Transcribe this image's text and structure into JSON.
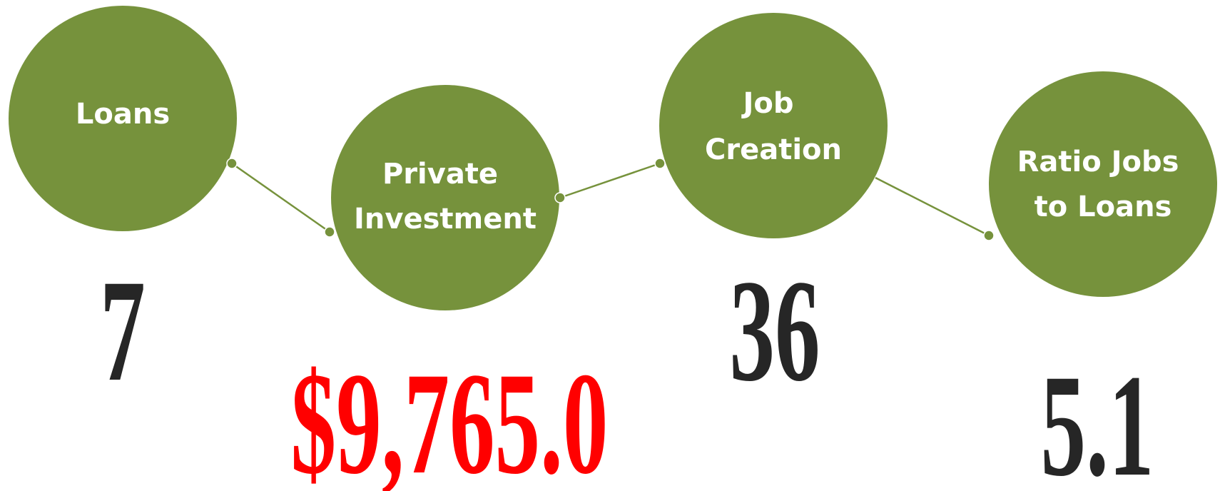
{
  "nodes": [
    {
      "label": [
        "Loans"
      ],
      "value": "7"
    },
    {
      "label": [
        "Private",
        "Investment"
      ],
      "value": "$9,765.0"
    },
    {
      "label": [
        "Job",
        "Creation"
      ],
      "value": "36"
    },
    {
      "label": [
        "Ratio Jobs",
        "to Loans"
      ],
      "value": "5.1"
    }
  ]
}
